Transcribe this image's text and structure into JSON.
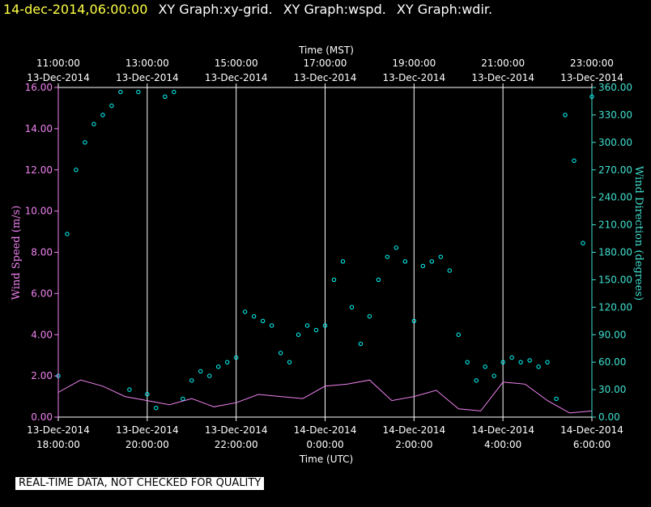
{
  "header": {
    "timestamp": "14-dec-2014,06:00:00",
    "graph_titles": [
      "XY Graph:xy-grid.",
      "XY Graph:wspd.",
      "XY Graph:wdir."
    ]
  },
  "notice": "REAL-TIME DATA, NOT CHECKED FOR QUALITY",
  "colors": {
    "wspd": "#ee82ee",
    "wdir": "#00ffff",
    "axis_left": "#ee82ee",
    "axis_right": "#40e0d0",
    "grid": "#ffffff"
  },
  "chart_data": {
    "type": "scatter",
    "title": "",
    "top_axis": {
      "label": "Time (MST)",
      "ticks": [
        {
          "time": "11:00:00",
          "date": "13-Dec-2014"
        },
        {
          "time": "13:00:00",
          "date": "13-Dec-2014"
        },
        {
          "time": "15:00:00",
          "date": "13-Dec-2014"
        },
        {
          "time": "17:00:00",
          "date": "13-Dec-2014"
        },
        {
          "time": "19:00:00",
          "date": "13-Dec-2014"
        },
        {
          "time": "21:00:00",
          "date": "13-Dec-2014"
        },
        {
          "time": "23:00:00",
          "date": "13-Dec-2014"
        }
      ]
    },
    "bottom_axis": {
      "label": "Time (UTC)",
      "range": [
        "2014-12-13T18:00",
        "2014-12-14T06:00"
      ],
      "ticks": [
        {
          "date": "13-Dec-2014",
          "time": "18:00:00"
        },
        {
          "date": "13-Dec-2014",
          "time": "20:00:00"
        },
        {
          "date": "13-Dec-2014",
          "time": "22:00:00"
        },
        {
          "date": "14-Dec-2014",
          "time": "0:00:00"
        },
        {
          "date": "14-Dec-2014",
          "time": "2:00:00"
        },
        {
          "date": "14-Dec-2014",
          "time": "4:00:00"
        },
        {
          "date": "14-Dec-2014",
          "time": "6:00:00"
        }
      ]
    },
    "left_axis": {
      "label": "Wind Speed (m/s)",
      "ylim": [
        0,
        16
      ],
      "ticks": [
        "0.00",
        "2.00",
        "4.00",
        "6.00",
        "8.00",
        "10.00",
        "12.00",
        "14.00",
        "16.00"
      ]
    },
    "right_axis": {
      "label": "Wind Direction (degrees)",
      "ylim": [
        0,
        360
      ],
      "ticks": [
        "0.00",
        "30.00",
        "60.00",
        "90.00",
        "120.00",
        "150.00",
        "180.00",
        "210.00",
        "240.00",
        "270.00",
        "300.00",
        "330.00",
        "360.00"
      ]
    },
    "grid": "vertical",
    "series": [
      {
        "key": "wspd",
        "style": "line",
        "x_hours_utc": [
          18.0,
          18.5,
          19.0,
          19.5,
          20.0,
          20.5,
          21.0,
          21.5,
          22.0,
          22.5,
          23.0,
          23.5,
          24.0,
          24.5,
          25.0,
          25.5,
          26.0,
          26.5,
          27.0,
          27.5,
          28.0,
          28.5,
          29.0,
          29.5,
          30.0
        ],
        "values": [
          1.2,
          1.8,
          1.5,
          1.0,
          0.8,
          0.6,
          0.9,
          0.5,
          0.7,
          1.1,
          1.0,
          0.9,
          1.5,
          1.6,
          1.8,
          0.8,
          1.0,
          1.3,
          0.4,
          0.3,
          1.7,
          1.6,
          0.8,
          0.2,
          0.3
        ]
      },
      {
        "key": "wdir",
        "style": "markers",
        "x_hours_utc": [
          18.0,
          18.2,
          18.4,
          18.6,
          18.8,
          19.0,
          19.2,
          19.4,
          19.6,
          19.8,
          20.0,
          20.2,
          20.4,
          20.6,
          20.8,
          21.0,
          21.2,
          21.4,
          21.6,
          21.8,
          22.0,
          22.2,
          22.4,
          22.6,
          22.8,
          23.0,
          23.2,
          23.4,
          23.6,
          23.8,
          24.0,
          24.2,
          24.4,
          24.6,
          24.8,
          25.0,
          25.2,
          25.4,
          25.6,
          25.8,
          26.0,
          26.2,
          26.4,
          26.6,
          26.8,
          27.0,
          27.2,
          27.4,
          27.6,
          27.8,
          28.0,
          28.2,
          28.4,
          28.6,
          28.8,
          29.0,
          29.2,
          29.4,
          29.6,
          29.8,
          30.0
        ],
        "values": [
          45,
          200,
          270,
          300,
          320,
          330,
          340,
          355,
          30,
          355,
          25,
          10,
          350,
          355,
          20,
          40,
          50,
          45,
          55,
          60,
          65,
          115,
          110,
          105,
          100,
          70,
          60,
          90,
          100,
          95,
          100,
          150,
          170,
          120,
          80,
          110,
          150,
          175,
          185,
          170,
          105,
          165,
          170,
          175,
          160,
          90,
          60,
          40,
          55,
          45,
          60,
          65,
          60,
          62,
          55,
          60,
          20,
          330,
          280,
          190,
          350
        ]
      }
    ]
  }
}
